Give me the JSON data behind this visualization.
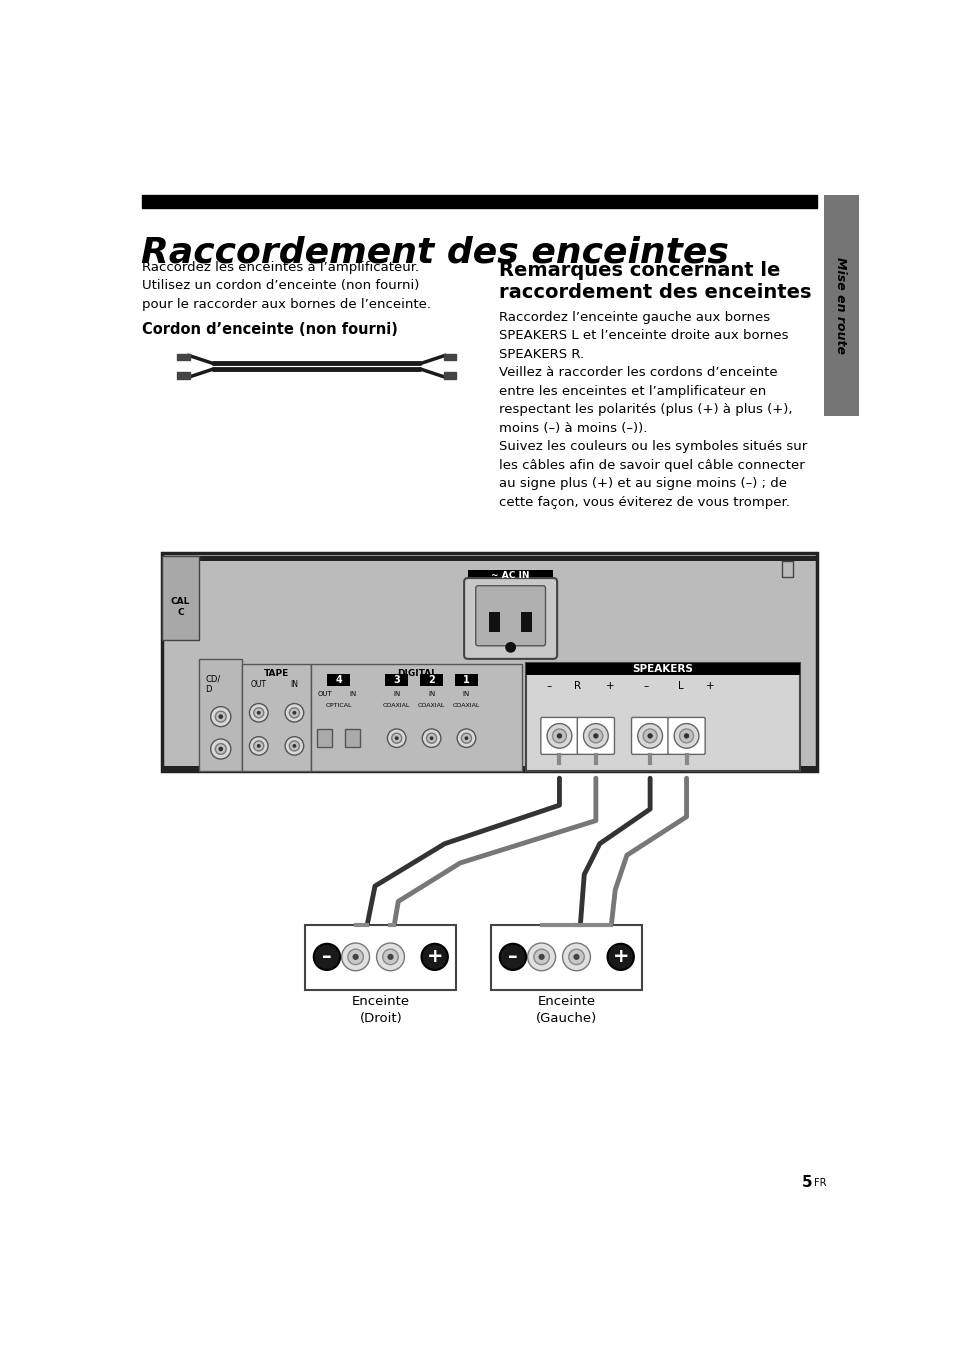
{
  "title": "Raccordement des enceintes",
  "title_bar_color": "#000000",
  "title_color": "#000000",
  "sidebar_color": "#757575",
  "sidebar_text": "Mise en route",
  "body_bg": "#ffffff",
  "text_color": "#000000",
  "left_body_text": "Raccordez les enceintes à l’amplificateur.\nUtilisez un cordon d’enceinte (non fourni)\npour le raccorder aux bornes de l’enceinte.",
  "left_subheading": "Cordon d’enceinte (non fourni)",
  "right_heading_line1": "Remarques concernant le",
  "right_heading_line2": "raccordement des enceintes",
  "right_body_text": "Raccordez l’enceinte gauche aux bornes\nSPEAKERS L et l’enceinte droite aux bornes\nSPEAKERS R.\nVeillez à raccorder les cordons d’enceinte\nentre les enceintes et l’amplificateur en\nrespectant les polarités (plus (+) à plus (+),\nmoins (–) à moins (–)).\nSuivez les couleurs ou les symboles situés sur\nles câbles afin de savoir quel câble connecter\nau signe plus (+) et au signe moins (–) ; de\ncette façon, vous éviterez de vous tromper.",
  "page_number": "5",
  "page_suffix": "FR",
  "amp_bg": "#c0c0c0",
  "amp_border": "#555555",
  "speakers_bg": "#d0d0d0",
  "black": "#000000",
  "white": "#ffffff",
  "dark_gray": "#333333",
  "mid_gray": "#888888",
  "light_gray": "#e0e0e0"
}
